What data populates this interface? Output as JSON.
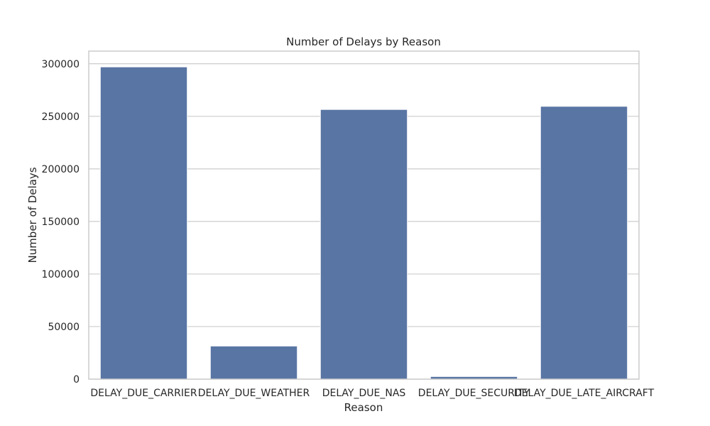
{
  "chart_data": {
    "type": "bar",
    "title": "Number of Delays by Reason",
    "xlabel": "Reason",
    "ylabel": "Number of Delays",
    "categories": [
      "DELAY_DUE_CARRIER",
      "DELAY_DUE_WEATHER",
      "DELAY_DUE_NAS",
      "DELAY_DUE_SECURITY",
      "DELAY_DUE_LATE_AIRCRAFT"
    ],
    "values": [
      297000,
      31500,
      256500,
      2500,
      259500
    ],
    "ylim": [
      0,
      312000
    ],
    "yticks": [
      0,
      50000,
      100000,
      150000,
      200000,
      250000,
      300000
    ],
    "grid": "horizontal",
    "bar_color": "#5975a4",
    "grid_color": "#cccccc",
    "frame_color": "#cccccc"
  }
}
